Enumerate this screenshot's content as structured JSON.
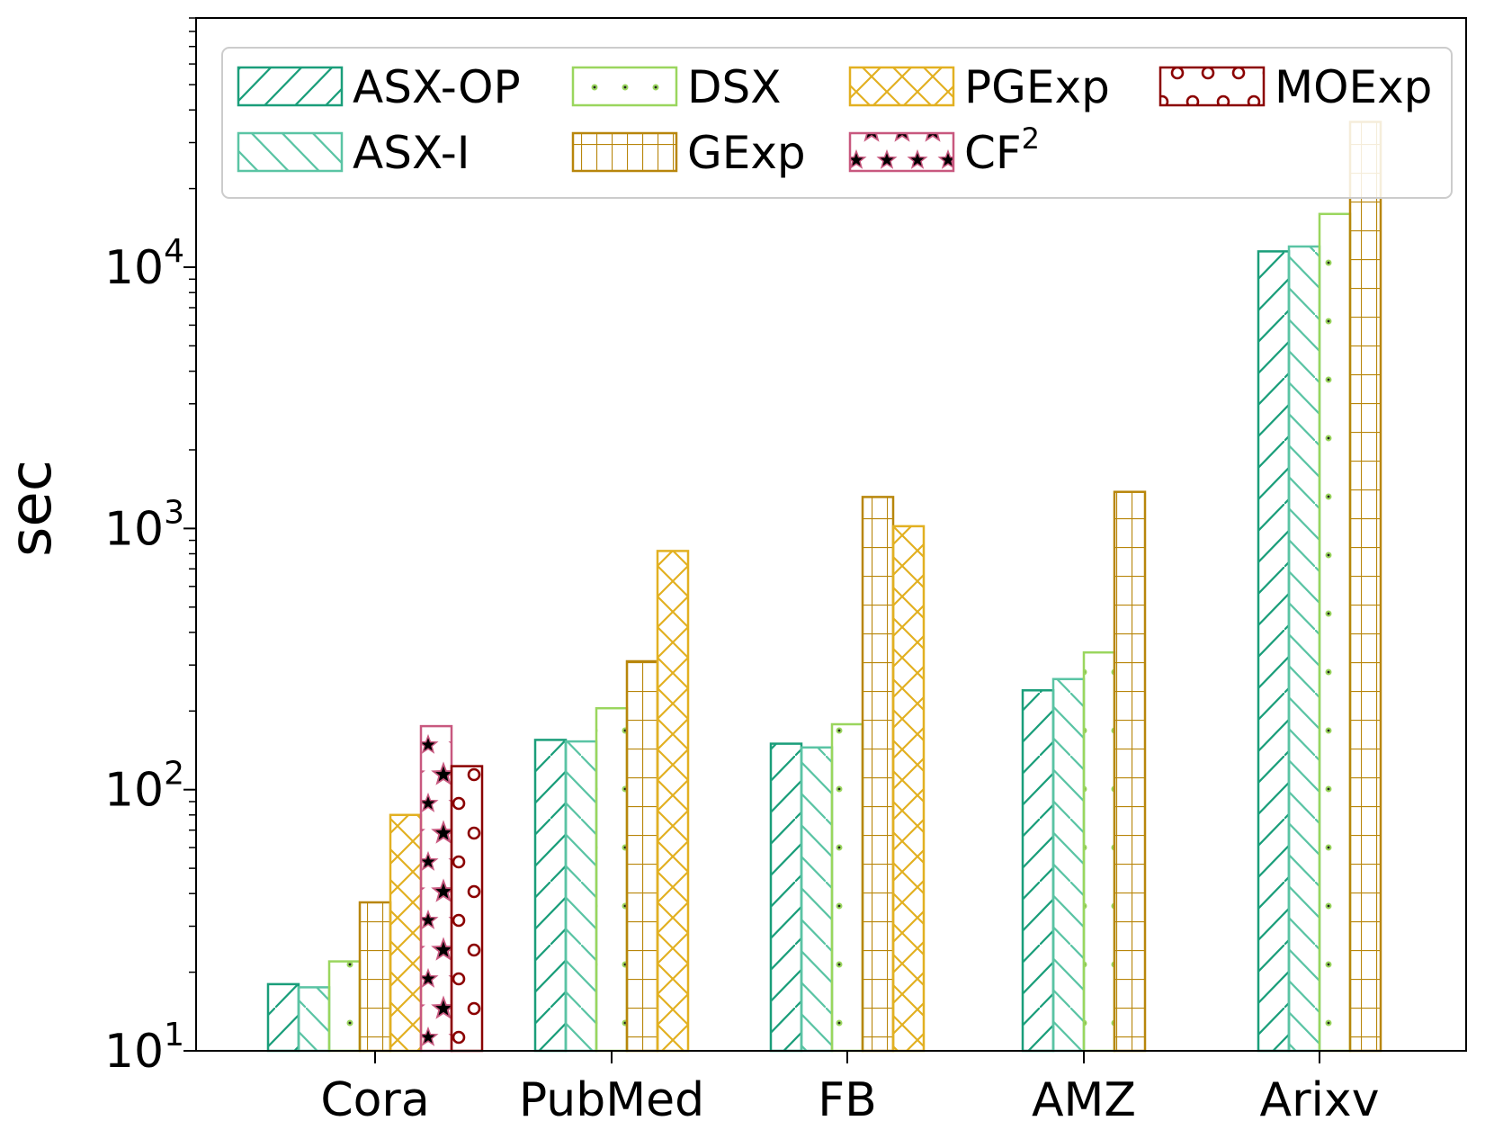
{
  "chart_data": {
    "type": "bar",
    "title": "",
    "xlabel": "",
    "ylabel": "sec",
    "yscale": "log",
    "ylim": [
      10,
      90000
    ],
    "y_ticks": [
      {
        "value": 10,
        "base": "10",
        "exp": "1"
      },
      {
        "value": 100,
        "base": "10",
        "exp": "2"
      },
      {
        "value": 1000,
        "base": "10",
        "exp": "3"
      },
      {
        "value": 10000,
        "base": "10",
        "exp": "4"
      }
    ],
    "categories": [
      "Cora",
      "PubMed",
      "FB",
      "AMZ",
      "Arixv"
    ],
    "legend_position": "top",
    "series": [
      {
        "name": "ASX-OP",
        "legend_label": "ASX-OP",
        "legend_sup": "",
        "color": "#1a9e7a",
        "pattern": "diag",
        "values": [
          18,
          155,
          150,
          240,
          11500
        ]
      },
      {
        "name": "ASX-I",
        "legend_label": "ASX-I",
        "legend_sup": "",
        "color": "#5ac4a4",
        "pattern": "backdiag",
        "values": [
          17.5,
          153,
          145,
          265,
          12000
        ]
      },
      {
        "name": "DSX",
        "legend_label": "DSX",
        "legend_sup": "",
        "color": "#9ad65e",
        "pattern": "dots",
        "values": [
          22,
          205,
          178,
          335,
          16000
        ]
      },
      {
        "name": "GExp",
        "legend_label": "GExp",
        "legend_sup": "",
        "color": "#b8860b",
        "pattern": "grid",
        "values": [
          37,
          310,
          1320,
          1380,
          36000
        ]
      },
      {
        "name": "PGExp",
        "legend_label": "PGExp",
        "legend_sup": "",
        "color": "#e2b021",
        "pattern": "cross",
        "values": [
          80,
          820,
          1020,
          null,
          null
        ]
      },
      {
        "name": "CF2",
        "legend_label": "CF",
        "legend_sup": "2",
        "color": "#c8587f",
        "pattern": "stars",
        "values": [
          175,
          null,
          null,
          null,
          null
        ]
      },
      {
        "name": "MOExp",
        "legend_label": "MOExp",
        "legend_sup": "",
        "color": "#8b0000",
        "pattern": "circles",
        "values": [
          123,
          null,
          null,
          null,
          null
        ]
      }
    ]
  }
}
